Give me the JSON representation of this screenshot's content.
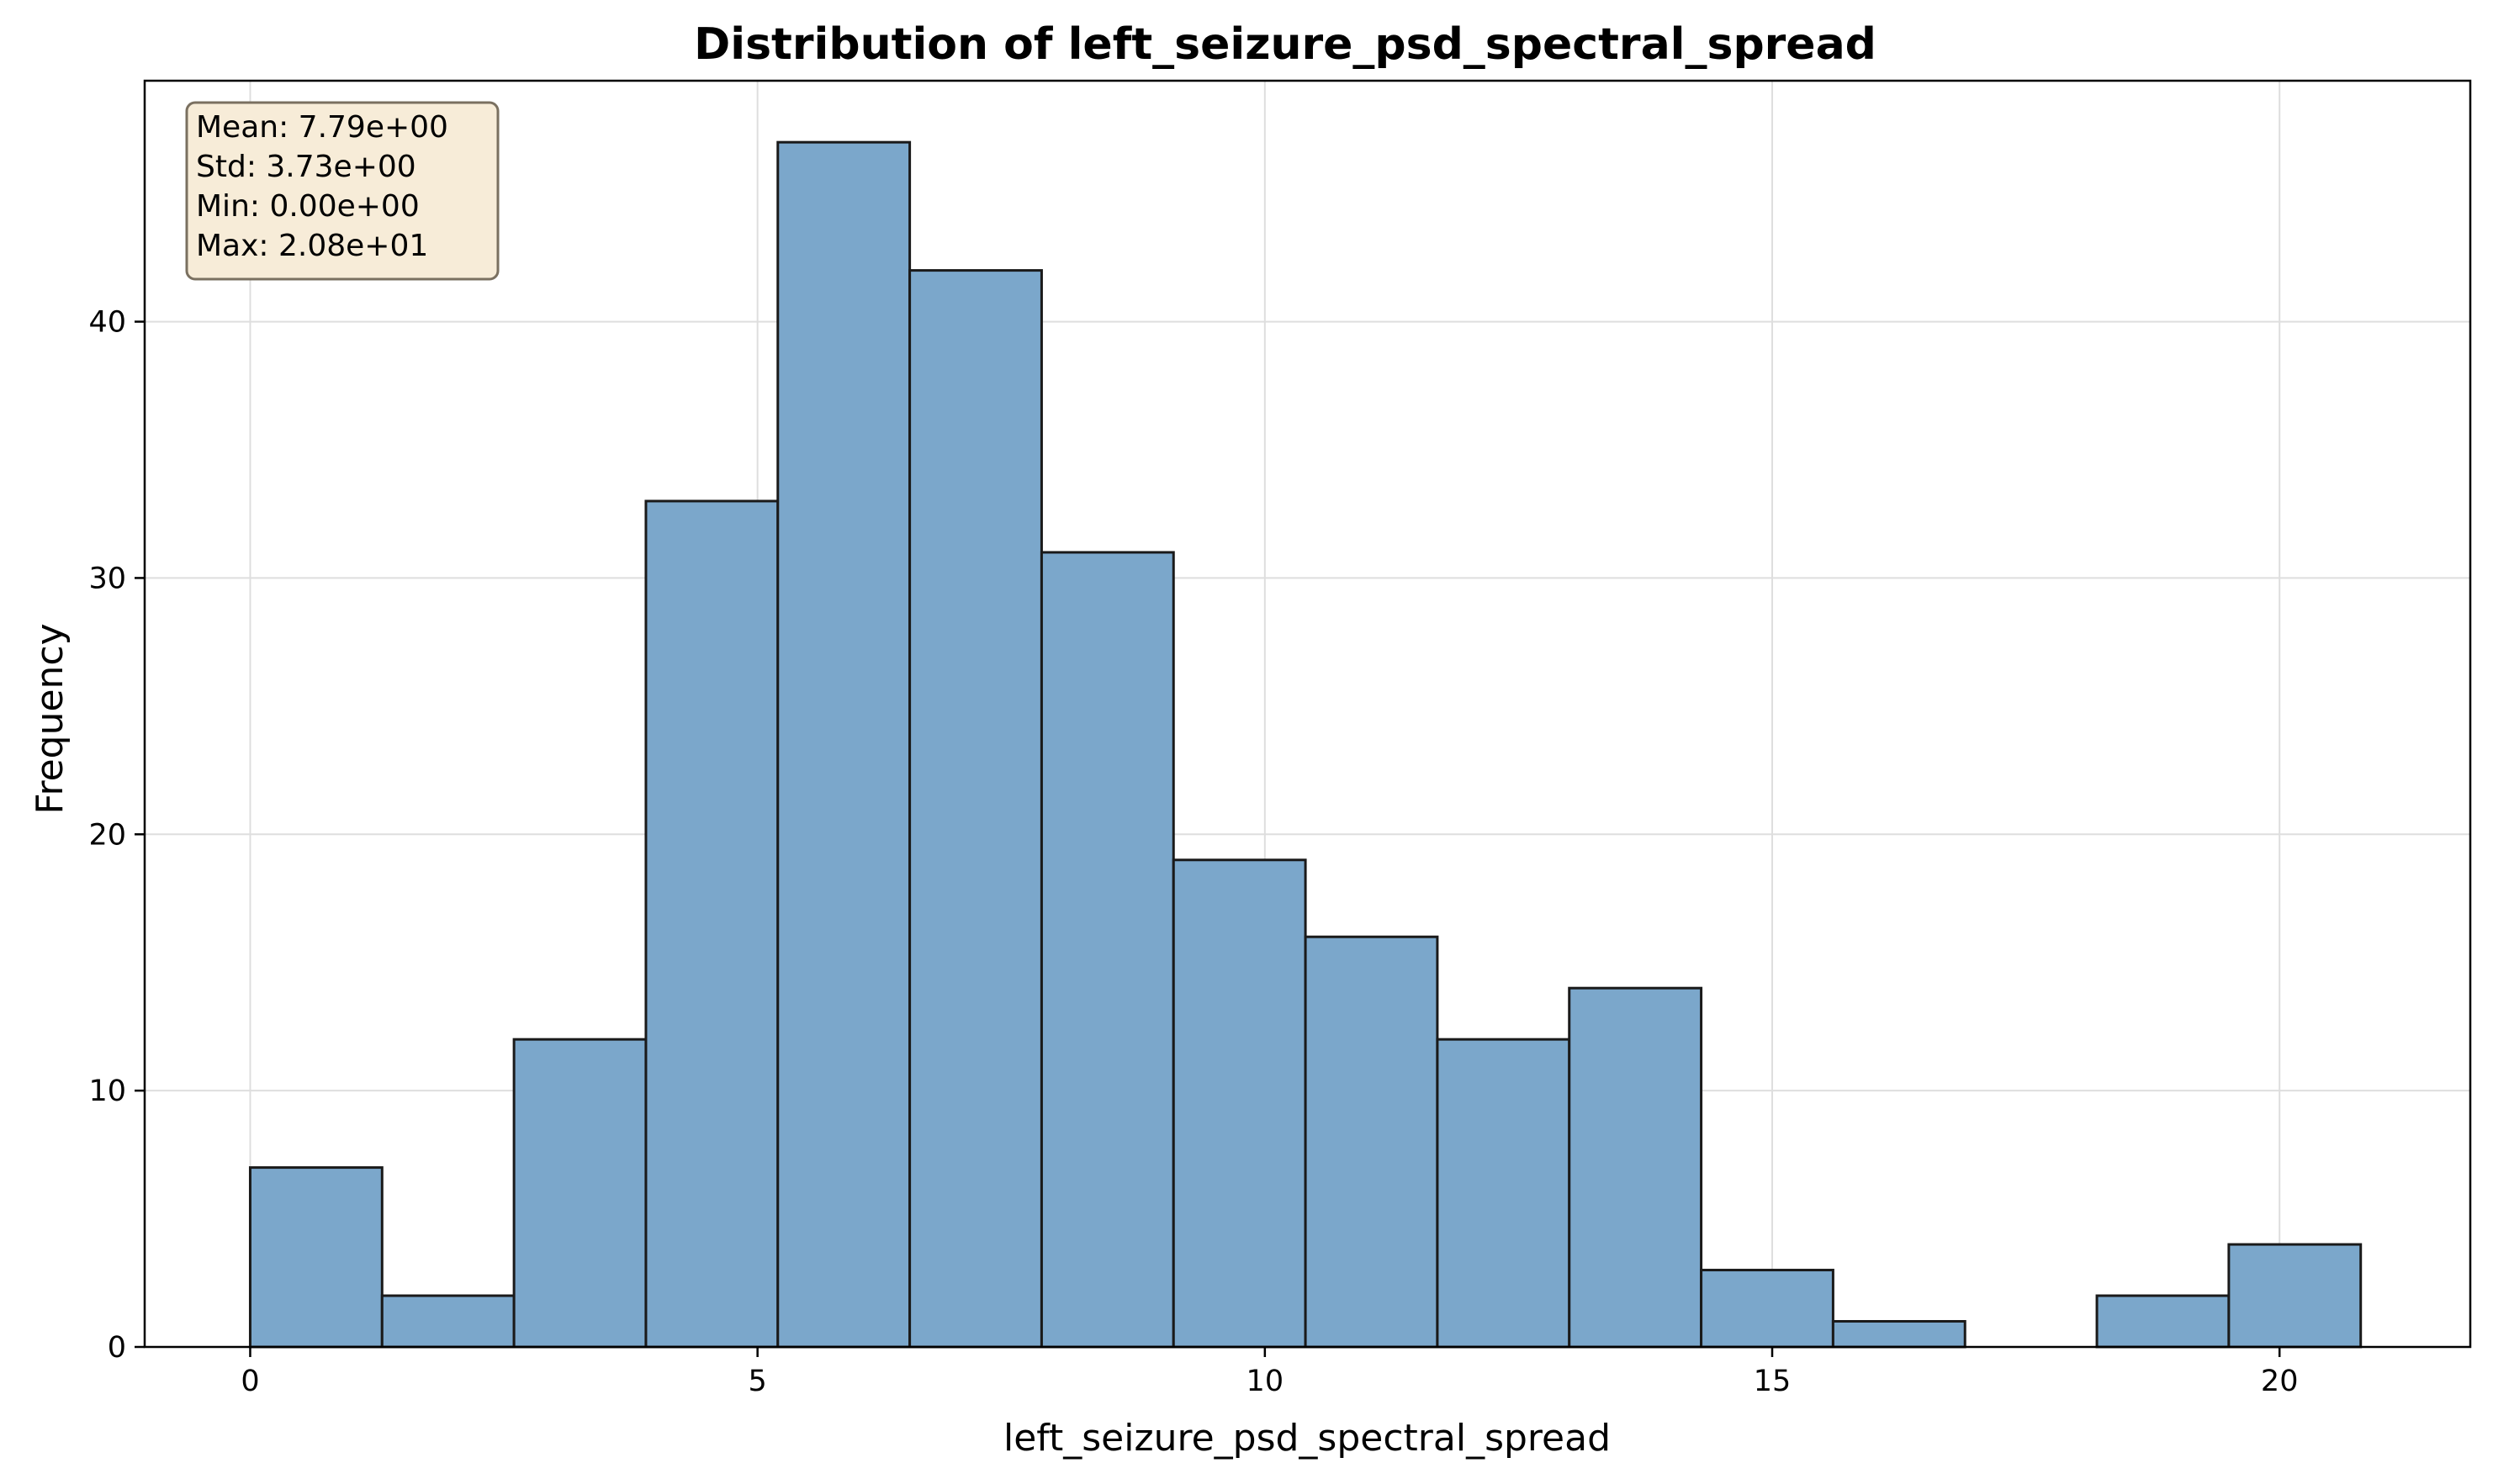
{
  "chart_data": {
    "type": "bar",
    "title": "Distribution of left_seizure_psd_spectral_spread",
    "xlabel": "left_seizure_psd_spectral_spread",
    "ylabel": "Frequency",
    "xlim": [
      -1.04,
      21.88
    ],
    "ylim": [
      0,
      49.4
    ],
    "xticks": [
      0,
      5,
      10,
      15,
      20
    ],
    "yticks": [
      0,
      10,
      20,
      30,
      40
    ],
    "grid": true,
    "bin_edges": [
      0.0,
      1.3,
      2.6,
      3.9,
      5.2,
      6.5,
      7.8,
      9.1,
      10.4,
      11.7,
      13.0,
      14.3,
      15.6,
      16.9,
      18.2,
      19.5,
      20.8
    ],
    "values": [
      7,
      2,
      12,
      33,
      47,
      42,
      31,
      19,
      16,
      12,
      14,
      3,
      1,
      0,
      2,
      4
    ],
    "bar_color": "#7ba7cb",
    "edge_color": "#1a1a1a",
    "stats_box": {
      "lines": [
        "Mean: 7.79e+00",
        "Std: 3.73e+00",
        "Min: 0.00e+00",
        "Max: 2.08e+01"
      ],
      "background": "#f7ecd8",
      "position": "top-left"
    }
  }
}
